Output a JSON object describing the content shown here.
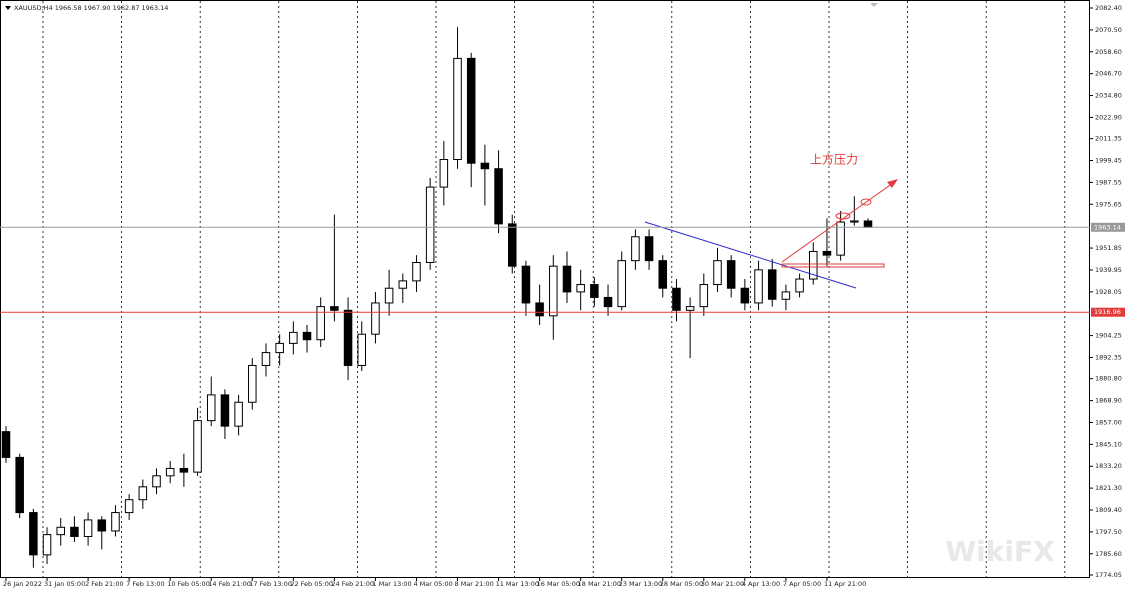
{
  "chart_data": {
    "type": "candlestick",
    "header": "XAUUSD,H4  1966.58 1967.90 1962.87 1963.14",
    "annotation": "上方压力",
    "watermark": "WikiFX",
    "categories": [
      "26 Jan 2022",
      null,
      null,
      "31 Jan 05:00",
      null,
      null,
      "2 Feb 21:00",
      null,
      null,
      "7 Feb 13:00",
      null,
      null,
      "10 Feb 05:00",
      null,
      null,
      "14 Feb 21:00",
      null,
      null,
      "17 Feb 13:00",
      null,
      null,
      "22 Feb 05:00",
      null,
      null,
      "24 Feb 21:00",
      null,
      null,
      "1 Mar 13:00",
      null,
      null,
      "4 Mar 05:00",
      null,
      null,
      "8 Mar 21:00",
      null,
      null,
      "11 Mar 13:00",
      null,
      null,
      "16 Mar 05:00",
      null,
      null,
      "18 Mar 21:00",
      null,
      null,
      "23 Mar 13:00",
      null,
      null,
      "28 Mar 05:00",
      null,
      null,
      "30 Mar 21:00",
      null,
      null,
      "4 Apr 13:00",
      null,
      null,
      "7 Apr 05:00",
      null,
      null,
      "11 Apr 21:00",
      null,
      null,
      null
    ],
    "open": [
      1852,
      1838,
      1808,
      1785,
      1796,
      1800,
      1795,
      1804,
      1798,
      1808,
      1815,
      1822,
      1828,
      1832,
      1830,
      1858,
      1872,
      1855,
      1868,
      1888,
      1895,
      1900,
      1906,
      1902,
      1920,
      1918,
      1888,
      1905,
      1922,
      1930,
      1934,
      1944,
      1985,
      2000,
      2055,
      1998,
      1995,
      1965,
      1942,
      1922,
      1915,
      1942,
      1928,
      1932,
      1925,
      1920,
      1945,
      1958,
      1945,
      1930,
      1918,
      1920,
      1932,
      1945,
      1930,
      1922,
      1940,
      1924,
      1928,
      1935,
      1950,
      1948,
      1966,
      1966.58
    ],
    "high": [
      1855,
      1840,
      1810,
      1800,
      1805,
      1806,
      1808,
      1806,
      1812,
      1818,
      1826,
      1832,
      1836,
      1840,
      1865,
      1882,
      1875,
      1872,
      1892,
      1900,
      1905,
      1912,
      1910,
      1925,
      1970,
      1925,
      1912,
      1928,
      1940,
      1938,
      1948,
      1990,
      2010,
      2072,
      2058,
      2008,
      2005,
      1970,
      1945,
      1932,
      1948,
      1950,
      1940,
      1936,
      1932,
      1950,
      1962,
      1962,
      1948,
      1935,
      1925,
      1938,
      1952,
      1948,
      1935,
      1945,
      1946,
      1932,
      1938,
      1955,
      1968,
      1972,
      1980,
      1967.9
    ],
    "low": [
      1835,
      1805,
      1778,
      1780,
      1790,
      1792,
      1790,
      1788,
      1795,
      1804,
      1810,
      1818,
      1824,
      1822,
      1828,
      1855,
      1848,
      1850,
      1864,
      1882,
      1888,
      1894,
      1895,
      1898,
      1912,
      1880,
      1885,
      1900,
      1915,
      1922,
      1928,
      1940,
      1975,
      1995,
      1985,
      1975,
      1960,
      1938,
      1915,
      1910,
      1902,
      1922,
      1918,
      1920,
      1915,
      1918,
      1940,
      1940,
      1925,
      1912,
      1892,
      1915,
      1928,
      1925,
      1918,
      1918,
      1920,
      1918,
      1925,
      1932,
      1942,
      1945,
      1964,
      1962.87
    ],
    "close": [
      1838,
      1808,
      1785,
      1796,
      1800,
      1795,
      1804,
      1798,
      1808,
      1815,
      1822,
      1828,
      1832,
      1830,
      1858,
      1872,
      1855,
      1868,
      1888,
      1895,
      1900,
      1906,
      1902,
      1920,
      1918,
      1888,
      1905,
      1922,
      1930,
      1934,
      1944,
      1985,
      2000,
      2055,
      1998,
      1995,
      1965,
      1942,
      1922,
      1915,
      1942,
      1928,
      1932,
      1925,
      1920,
      1945,
      1958,
      1945,
      1930,
      1918,
      1920,
      1932,
      1945,
      1930,
      1922,
      1940,
      1924,
      1928,
      1935,
      1950,
      1948,
      1966,
      1966.58,
      1963.14
    ],
    "ylim": [
      1774.05,
      2082.4
    ],
    "yticks": [
      {
        "value": 2082.4,
        "label": "2082.40"
      },
      {
        "value": 2070.5,
        "label": "2070.50"
      },
      {
        "value": 2058.6,
        "label": "2058.60"
      },
      {
        "value": 2046.7,
        "label": "2046.70"
      },
      {
        "value": 2034.8,
        "label": "2034.80"
      },
      {
        "value": 2022.9,
        "label": "2022.90"
      },
      2011.35,
      1999.45,
      1987.55,
      1975.65,
      1951.85,
      1939.95,
      1928.05,
      1904.25,
      1892.35,
      {
        "value": 1880.8,
        "label": "1880.80"
      },
      {
        "value": 1868.9,
        "label": "1868.90"
      },
      {
        "value": 1857,
        "label": "1857.00"
      },
      {
        "value": 1845.1,
        "label": "1845.10"
      },
      {
        "value": 1833.2,
        "label": "1833.20"
      },
      {
        "value": 1821.3,
        "label": "1821.30"
      },
      {
        "value": 1809.4,
        "label": "1809.40"
      },
      {
        "value": 1797.5,
        "label": "1797.50"
      },
      {
        "value": 1785.6,
        "label": "1785.60"
      },
      1774.05
    ],
    "hlines": [
      {
        "value": 1963.14,
        "color": "#9a9a9a"
      },
      {
        "value": 1916.96,
        "color": "#e23b3b"
      }
    ]
  }
}
